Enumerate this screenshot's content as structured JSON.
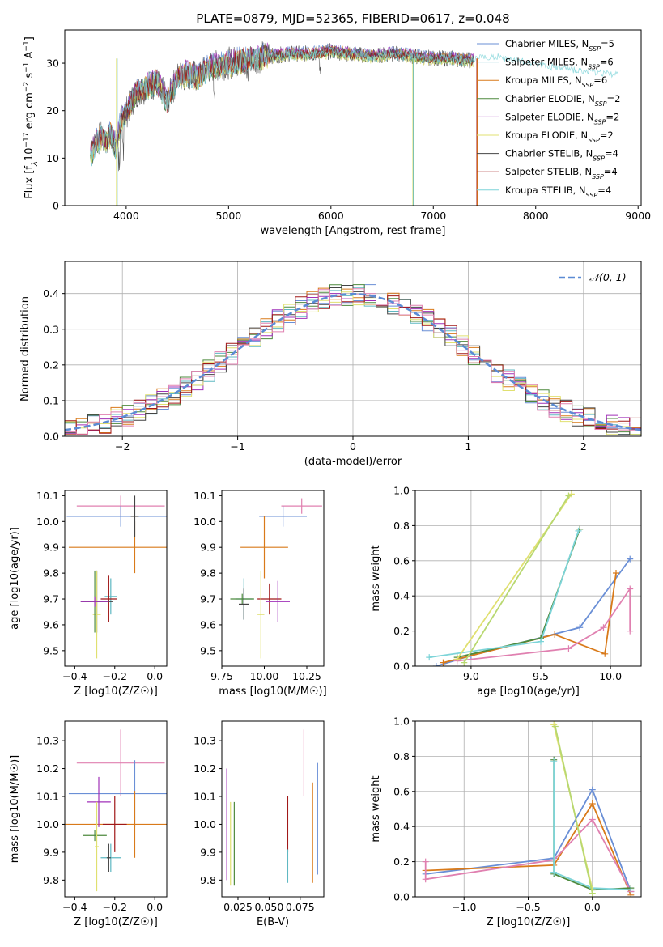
{
  "chart_data": [
    {
      "id": "spectrum",
      "type": "line",
      "title": "PLATE=0879, MJD=52365, FIBERID=0617, z=0.048",
      "xlabel": "wavelength [Angstrom, rest frame]",
      "ylabel_parts": [
        "Flux [f",
        "λ",
        "10",
        "−17",
        " erg cm",
        "−2",
        " s",
        "−1",
        " A",
        "−1",
        "]"
      ],
      "xlim": [
        3400,
        9030
      ],
      "ylim": [
        0,
        37
      ],
      "xticks": [
        4000,
        5000,
        6000,
        7000,
        8000,
        9000
      ],
      "yticks": [
        0,
        10,
        20,
        30
      ],
      "grid": false,
      "legend_position": "top-right",
      "data_x": [
        3650,
        3700,
        3750,
        3800,
        3850,
        3900,
        3950,
        4000,
        4100,
        4200,
        4300,
        4400,
        4500,
        4600,
        4700,
        4800,
        4900,
        5000,
        5200,
        5400,
        5600,
        5800,
        6000,
        6200,
        6400,
        6600,
        6800,
        7000,
        7200,
        7400
      ],
      "data_y": [
        10.5,
        13,
        14.5,
        13.5,
        15,
        12,
        18,
        19.5,
        24,
        25,
        26,
        22,
        27,
        28,
        27,
        29,
        29.5,
        30,
        31,
        31.5,
        32,
        32,
        32.5,
        32,
        31.5,
        32,
        31.5,
        31,
        31,
        30.5
      ],
      "model_x": [
        7400,
        7600,
        7800,
        8000,
        8200,
        8400,
        8600,
        8800
      ],
      "model_y": [
        31,
        31.5,
        30.5,
        30,
        29,
        28.5,
        28,
        27.5
      ],
      "legend": [
        {
          "name": "Chabrier MILES",
          "nssp": "5",
          "color": "#6a8fd6"
        },
        {
          "name": "Salpeter MILES",
          "nssp": "6",
          "color": "#5fb8c2"
        },
        {
          "name": "Kroupa MILES",
          "nssp": "6",
          "color": "#d97a1a"
        },
        {
          "name": "Chabrier ELODIE",
          "nssp": "2",
          "color": "#4e8a3e"
        },
        {
          "name": "Salpeter ELODIE",
          "nssp": "2",
          "color": "#a030b8"
        },
        {
          "name": "Kroupa ELODIE",
          "nssp": "2",
          "color": "#e0e070"
        },
        {
          "name": "Chabrier STELIB",
          "nssp": "4",
          "color": "#444444"
        },
        {
          "name": "Salpeter STELIB",
          "nssp": "4",
          "color": "#a01818"
        },
        {
          "name": "Kroupa STELIB",
          "nssp": "4",
          "color": "#7dd4d8"
        }
      ],
      "legend_prefix": "N",
      "legend_sub": "SSP"
    },
    {
      "id": "residuals",
      "type": "histogram",
      "xlabel": "(data-model)/error",
      "ylabel": "Normed distribution",
      "xlim": [
        -2.5,
        2.5
      ],
      "ylim": [
        0,
        0.49
      ],
      "xticks": [
        -2,
        -1,
        0,
        1,
        2
      ],
      "yticks": [
        0.0,
        0.1,
        0.2,
        0.3,
        0.4
      ],
      "grid": true,
      "legend_position": "top-right",
      "legend_label": "𝒩(0, 1)",
      "bin_width": 0.1,
      "bin_start": -2.5,
      "hist_colors": [
        "#6a8fd6",
        "#5fb8c2",
        "#d97a1a",
        "#4e8a3e",
        "#a030b8",
        "#e0e070",
        "#444444",
        "#a01818",
        "#e080b0"
      ],
      "normal_color": "#5b8bd4"
    },
    {
      "id": "age-vs-z",
      "type": "errorbar",
      "xlabel": "Z [log10(Z/Z☉)]",
      "ylabel": "age [log10(age/yr)]",
      "xlim": [
        -0.45,
        0.06
      ],
      "ylim": [
        9.44,
        10.12
      ],
      "xticks": [
        -0.4,
        -0.2,
        0.0
      ],
      "yticks": [
        9.5,
        9.6,
        9.7,
        9.8,
        9.9,
        10.0,
        10.1
      ],
      "points": [
        {
          "x": -0.17,
          "y": 10.06,
          "xerr": 0.22,
          "yerr": 0.04,
          "color": "#e080b0"
        },
        {
          "x": -0.17,
          "y": 10.02,
          "xerr": 0.27,
          "yerr": 0.04,
          "color": "#6a8fd6"
        },
        {
          "x": -0.1,
          "y": 9.9,
          "xerr": 0.33,
          "yerr": 0.1,
          "color": "#d97a1a"
        },
        {
          "x": -0.1,
          "y": 10.02,
          "xerr": 0.02,
          "yerr": 0.08,
          "color": "#444444"
        },
        {
          "x": -0.22,
          "y": 9.71,
          "xerr": 0.03,
          "yerr": 0.07,
          "color": "#5fb8c2"
        },
        {
          "x": -0.23,
          "y": 9.7,
          "xerr": 0.04,
          "yerr": 0.09,
          "color": "#a01818"
        },
        {
          "x": -0.29,
          "y": 9.69,
          "xerr": 0.08,
          "yerr": 0.12,
          "color": "#444444"
        },
        {
          "x": -0.29,
          "y": 9.64,
          "xerr": 0.02,
          "yerr": 0.17,
          "color": "#e0e070"
        },
        {
          "x": -0.3,
          "y": 9.69,
          "xerr": 0.06,
          "yerr": 0.12,
          "color": "#4e8a3e"
        },
        {
          "x": -0.3,
          "y": 9.69,
          "xerr": 0.07,
          "yerr": 0.02,
          "color": "#a030b8"
        }
      ]
    },
    {
      "id": "age-vs-mass",
      "type": "errorbar",
      "xlabel": "mass [log10(M/M☉)]",
      "ylabel": "",
      "xlim": [
        9.75,
        10.35
      ],
      "ylim": [
        9.44,
        10.12
      ],
      "xticks": [
        9.75,
        10.0,
        10.25
      ],
      "yticks": [
        9.5,
        9.6,
        9.7,
        9.8,
        9.9,
        10.0,
        10.1
      ],
      "points": [
        {
          "x": 10.22,
          "y": 10.06,
          "xerr": 0.12,
          "yerr": 0.03,
          "color": "#e080b0"
        },
        {
          "x": 10.11,
          "y": 10.02,
          "xerr": 0.14,
          "yerr": 0.04,
          "color": "#6a8fd6"
        },
        {
          "x": 10.0,
          "y": 9.9,
          "xerr": 0.14,
          "yerr": 0.12,
          "color": "#d97a1a"
        },
        {
          "x": 10.03,
          "y": 9.7,
          "xerr": 0.07,
          "yerr": 0.06,
          "color": "#a01818"
        },
        {
          "x": 9.88,
          "y": 9.7,
          "xerr": 0.05,
          "yerr": 0.08,
          "color": "#5fb8c2"
        },
        {
          "x": 9.98,
          "y": 9.64,
          "xerr": 0.02,
          "yerr": 0.17,
          "color": "#e0e070"
        },
        {
          "x": 10.08,
          "y": 9.69,
          "xerr": 0.07,
          "yerr": 0.08,
          "color": "#a030b8"
        },
        {
          "x": 9.87,
          "y": 9.7,
          "xerr": 0.07,
          "yerr": 0.02,
          "color": "#4e8a3e"
        },
        {
          "x": 9.88,
          "y": 9.68,
          "xerr": 0.03,
          "yerr": 0.06,
          "color": "#444444"
        }
      ]
    },
    {
      "id": "weight-vs-age",
      "type": "line",
      "xlabel": "age [log10(age/yr)]",
      "ylabel": "mass weight",
      "xlim": [
        8.6,
        10.22
      ],
      "ylim": [
        0,
        1.0
      ],
      "xticks": [
        9.0,
        9.5,
        10.0
      ],
      "yticks": [
        0.0,
        0.2,
        0.4,
        0.6,
        0.8,
        1.0
      ],
      "grid": true,
      "series": [
        {
          "color": "#6a8fd6",
          "x": [
            8.75,
            9.0,
            9.78,
            10.14
          ],
          "y": [
            0.0,
            0.06,
            0.22,
            0.61
          ]
        },
        {
          "color": "#d97a1a",
          "x": [
            8.8,
            9.6,
            9.96,
            10.04
          ],
          "y": [
            0.02,
            0.18,
            0.07,
            0.53
          ]
        },
        {
          "color": "#e080b0",
          "x": [
            8.9,
            9.7,
            9.95,
            10.14,
            10.14
          ],
          "y": [
            0.03,
            0.1,
            0.22,
            0.44,
            0.2
          ]
        },
        {
          "color": "#4e8a3e",
          "x": [
            8.9,
            9.5,
            9.78
          ],
          "y": [
            0.05,
            0.16,
            0.78
          ]
        },
        {
          "color": "#7dd4d8",
          "x": [
            8.7,
            9.5,
            9.77
          ],
          "y": [
            0.05,
            0.14,
            0.77
          ]
        },
        {
          "color": "#e0e070",
          "x": [
            8.9,
            9.72
          ],
          "y": [
            0.04,
            0.98
          ]
        },
        {
          "color": "#b8d870",
          "x": [
            8.95,
            9.7
          ],
          "y": [
            0.02,
            0.97
          ]
        }
      ]
    },
    {
      "id": "mass-vs-z",
      "type": "errorbar",
      "xlabel": "Z [log10(Z/Z☉)]",
      "ylabel": "mass [log10(M/M☉)]",
      "xlim": [
        -0.45,
        0.06
      ],
      "ylim": [
        9.74,
        10.37
      ],
      "xticks": [
        -0.4,
        -0.2,
        0.0
      ],
      "yticks": [
        9.8,
        9.9,
        10.0,
        10.1,
        10.2,
        10.3
      ],
      "points": [
        {
          "x": -0.17,
          "y": 10.22,
          "xerr": 0.22,
          "yerr": 0.12,
          "color": "#e080b0"
        },
        {
          "x": -0.1,
          "y": 10.11,
          "xerr": 0.33,
          "yerr": 0.12,
          "color": "#6a8fd6"
        },
        {
          "x": -0.1,
          "y": 10.0,
          "xerr": 0.36,
          "yerr": 0.12,
          "color": "#d97a1a"
        },
        {
          "x": -0.2,
          "y": 10.0,
          "xerr": 0.06,
          "yerr": 0.1,
          "color": "#a01818"
        },
        {
          "x": -0.28,
          "y": 10.08,
          "xerr": 0.06,
          "yerr": 0.09,
          "color": "#a030b8"
        },
        {
          "x": -0.3,
          "y": 9.96,
          "xerr": 0.06,
          "yerr": 0.02,
          "color": "#4e8a3e"
        },
        {
          "x": -0.29,
          "y": 9.92,
          "xerr": 0.01,
          "yerr": 0.16,
          "color": "#e0e070"
        },
        {
          "x": -0.22,
          "y": 9.88,
          "xerr": 0.05,
          "yerr": 0.05,
          "color": "#5fb8c2"
        },
        {
          "x": -0.23,
          "y": 9.88,
          "xerr": 0.01,
          "yerr": 0.05,
          "color": "#444444"
        }
      ]
    },
    {
      "id": "mass-vs-ebv",
      "type": "errorbar",
      "xlabel": "E(B-V)",
      "ylabel": "",
      "xlim": [
        0.012,
        0.094
      ],
      "ylim": [
        9.74,
        10.37
      ],
      "xticks": [
        0.025,
        0.05,
        0.075
      ],
      "xtick_labels": [
        "0.025",
        "0.050",
        "0.075"
      ],
      "yticks": [
        9.8,
        9.9,
        10.0,
        10.1,
        10.2,
        10.3
      ],
      "points": [
        {
          "x": 0.016,
          "y": 10.0,
          "xerr": 0.0,
          "yerr": 0.2,
          "color": "#a030b8"
        },
        {
          "x": 0.019,
          "y": 9.93,
          "xerr": 0.0,
          "yerr": 0.15,
          "color": "#e0e070"
        },
        {
          "x": 0.022,
          "y": 9.93,
          "xerr": 0.0,
          "yerr": 0.15,
          "color": "#4e8a3e"
        },
        {
          "x": 0.065,
          "y": 10.0,
          "xerr": 0.0,
          "yerr": 0.1,
          "color": "#a01818"
        },
        {
          "x": 0.065,
          "y": 9.85,
          "xerr": 0.0,
          "yerr": 0.06,
          "color": "#5fb8c2"
        },
        {
          "x": 0.078,
          "y": 10.22,
          "xerr": 0.0,
          "yerr": 0.12,
          "color": "#e080b0"
        },
        {
          "x": 0.085,
          "y": 9.97,
          "xerr": 0.0,
          "yerr": 0.18,
          "color": "#d97a1a"
        },
        {
          "x": 0.089,
          "y": 10.02,
          "xerr": 0.0,
          "yerr": 0.2,
          "color": "#6a8fd6"
        }
      ]
    },
    {
      "id": "weight-vs-z",
      "type": "line",
      "xlabel": "Z [log10(Z/Z☉)]",
      "ylabel": "mass weight",
      "xlim": [
        -1.38,
        0.38
      ],
      "ylim": [
        0,
        1.0
      ],
      "xticks": [
        -1.0,
        -0.5,
        0.0
      ],
      "yticks": [
        0.0,
        0.2,
        0.4,
        0.6,
        0.8,
        1.0
      ],
      "grid": true,
      "series": [
        {
          "color": "#6a8fd6",
          "x": [
            -1.3,
            -0.3,
            0.0,
            0.3
          ],
          "y": [
            0.13,
            0.22,
            0.61,
            0.03
          ]
        },
        {
          "color": "#d97a1a",
          "x": [
            -1.3,
            -0.3,
            0.0,
            0.3
          ],
          "y": [
            0.15,
            0.18,
            0.53,
            0.01
          ]
        },
        {
          "color": "#e080b0",
          "x": [
            -1.3,
            -1.3,
            -0.3,
            0.0,
            0.3
          ],
          "y": [
            0.2,
            0.1,
            0.21,
            0.44,
            0.03
          ]
        },
        {
          "color": "#4e8a3e",
          "x": [
            -0.3,
            -0.3,
            0.0,
            0.3
          ],
          "y": [
            0.78,
            0.13,
            0.04,
            0.05
          ]
        },
        {
          "color": "#7dd4d8",
          "x": [
            -0.3,
            -0.3,
            0.0,
            0.3
          ],
          "y": [
            0.77,
            0.14,
            0.05,
            0.04
          ]
        },
        {
          "color": "#e0e070",
          "x": [
            -0.3,
            0.0
          ],
          "y": [
            0.98,
            0.04
          ]
        },
        {
          "color": "#b8d870",
          "x": [
            -0.29,
            0.0
          ],
          "y": [
            0.97,
            0.02
          ]
        }
      ]
    }
  ]
}
